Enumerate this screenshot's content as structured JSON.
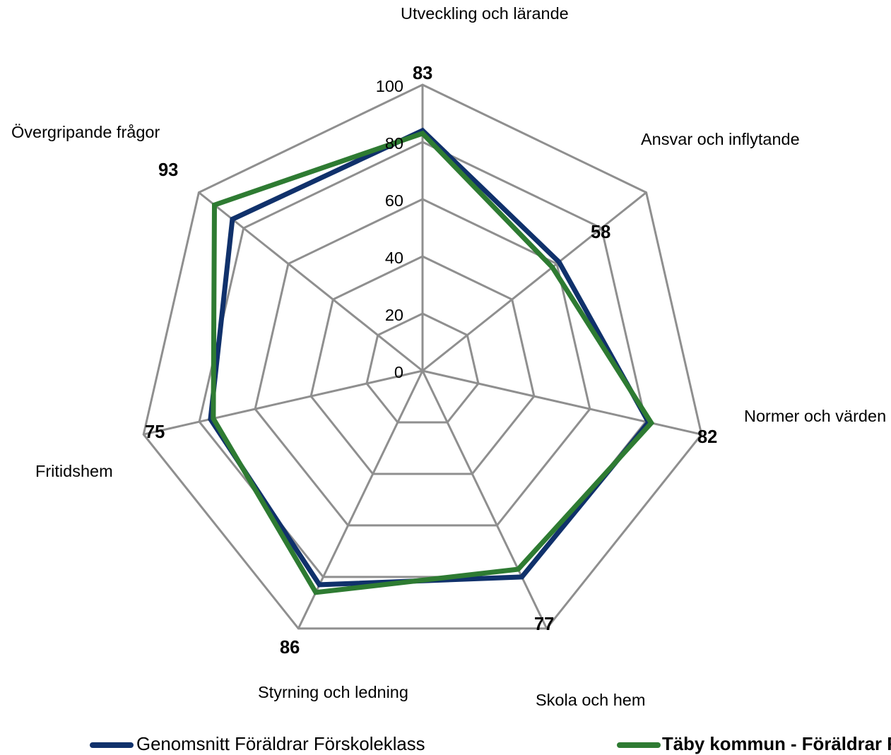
{
  "chart_data": {
    "type": "radar",
    "categories": [
      "Utveckling och lärande",
      "Ansvar och inflytande",
      "Normer och värden",
      "Skola och hem",
      "Styrning och ledning",
      "Fritidshem",
      "Övergripande frågor"
    ],
    "series": [
      {
        "name": "Genomsnitt Föräldrar Förskoleklass",
        "values": [
          84,
          61,
          81,
          80,
          83,
          76,
          85
        ],
        "color": "#10316B"
      },
      {
        "name": "Täby kommun - Föräldrar F",
        "values": [
          83,
          58,
          82,
          77,
          86,
          75,
          93
        ],
        "color": "#2E7B32",
        "data_labels": true
      }
    ],
    "r_ticks": [
      0,
      20,
      40,
      60,
      80,
      100
    ],
    "rlim": [
      0,
      100
    ],
    "grid": true,
    "grid_color": "#8F8F8F",
    "legend": "bottom"
  }
}
